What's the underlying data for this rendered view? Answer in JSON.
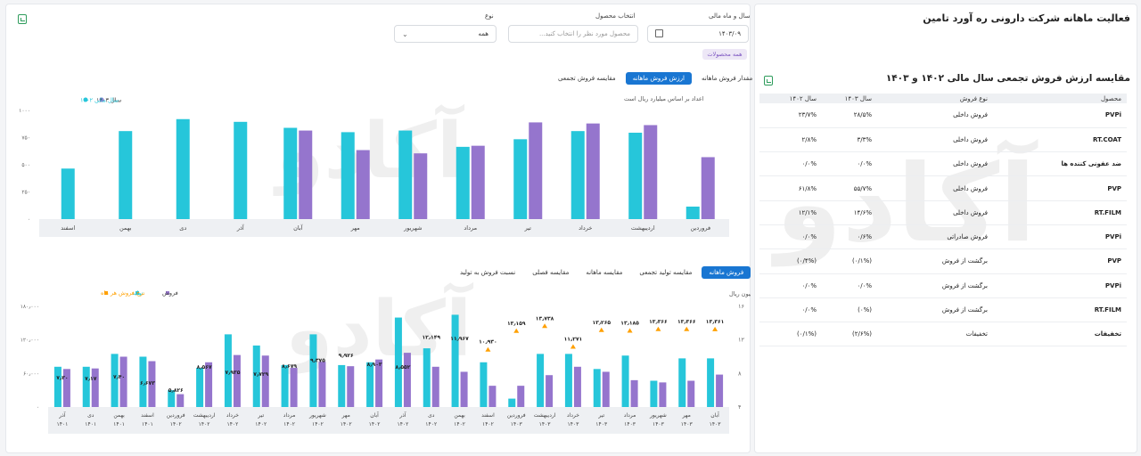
{
  "page_title": "فعالیت ماهانه شرکت دارونی ره آورد تامین",
  "filters": {
    "period_label": "سال و ماه مالی",
    "period_value": "۱۴۰۳/۰۹",
    "product_label": "انتخاب محصول",
    "product_placeholder": "محصول مورد نظر را انتخاب کنید...",
    "type_label": "نوع",
    "type_value": "همه",
    "all_products_chip": "همه محصولات"
  },
  "top_chart": {
    "tabs": [
      "مقدار فروش ماهانه",
      "ارزش فروش ماهانه",
      "مقایسه فروش تجمعی"
    ],
    "active_tab": 1,
    "note": "اعداد بر اساس میلیارد ریال است",
    "legend": [
      {
        "label": "سال ۱۴۰۳",
        "color": "#9575cd"
      },
      {
        "label": "سال مالی ۱۴۰۲",
        "color": "#26c6da"
      }
    ],
    "watermark": "آکادو"
  },
  "bottom_chart": {
    "tabs": [
      "فروش ماهانه",
      "مقایسه تولید تجمعی",
      "مقایسه ماهانه",
      "مقایسه فصلی",
      "نسبت فروش به تولید"
    ],
    "active_tab": 0,
    "legend": [
      {
        "label": "فروش",
        "color": "#9575cd"
      },
      {
        "label": "تولید",
        "color": "#26c6da"
      },
      {
        "label": "نرخ فروش هر ماه",
        "color": "#ffa000"
      }
    ],
    "right_axis_label": "میلیون ریال"
  },
  "comparison_table": {
    "title": "مقایسه ارزش فروش تجمعی سال مالی ۱۴۰۲ و ۱۴۰۳",
    "columns": [
      "محصول",
      "نوع فروش",
      "سال ۱۴۰۳",
      "سال ۱۴۰۲"
    ],
    "rows": [
      [
        "PVPi",
        "فروش داخلی",
        "۲۸/۵%",
        "۲۳/۷%"
      ],
      [
        "RT.COAT",
        "فروش داخلی",
        "۳/۳%",
        "۲/۸%"
      ],
      [
        "ضد عفونی کننده ها",
        "فروش داخلی",
        "۰/۰%",
        "۰/۰%"
      ],
      [
        "PVP",
        "فروش داخلی",
        "۵۵/۷%",
        "۶۱/۸%"
      ],
      [
        "RT.FILM",
        "فروش داخلی",
        "۱۴/۶%",
        "۱۲/۱%"
      ],
      [
        "PVPi",
        "فروش صادراتی",
        "۰/۶%",
        "۰/۰%"
      ],
      [
        "PVP",
        "برگشت از فروش",
        "(۰/۱%)",
        "(۰/۴%)"
      ],
      [
        "PVPi",
        "برگشت از فروش",
        "۰/۰%",
        "۰/۰%"
      ],
      [
        "RT.FILM",
        "برگشت از فروش",
        "(۰%)",
        "۰/۰%"
      ],
      [
        "تخفیفات",
        "تخفیفات",
        "(۲/۶%)",
        "(۰/۱%)"
      ]
    ]
  },
  "chart_data": [
    {
      "type": "bar",
      "categories": [
        "فروردین",
        "اردیبهشت",
        "خرداد",
        "تیر",
        "مرداد",
        "شهریور",
        "مهر",
        "آبان",
        "آذر",
        "دی",
        "بهمن",
        "اسفند"
      ],
      "series": [
        {
          "name": "سال مالی ۱۴۰۲",
          "values": [
            115,
            795,
            810,
            735,
            665,
            815,
            800,
            840,
            895,
            920,
            810,
            465
          ]
        },
        {
          "name": "سال ۱۴۰۳",
          "values": [
            570,
            865,
            880,
            890,
            675,
            605,
            635,
            815,
            null,
            null,
            null,
            null
          ]
        }
      ],
      "yticks": [
        "۱۰۰۰",
        "۷۵۰",
        "۵۰۰",
        "۲۵۰",
        "۰"
      ],
      "ylim": [
        0,
        1000
      ]
    },
    {
      "type": "bar",
      "categories": [
        "آذر ۱۴۰۱",
        "دی ۱۴۰۱",
        "بهمن ۱۴۰۱",
        "اسفند ۱۴۰۱",
        "فروردین ۱۴۰۲",
        "اردیبهشت ۱۴۰۲",
        "خرداد ۱۴۰۲",
        "تیر ۱۴۰۲",
        "مرداد ۱۴۰۲",
        "شهریور ۱۴۰۲",
        "مهر ۱۴۰۲",
        "آبان ۱۴۰۲",
        "آذر ۱۴۰۲",
        "دی ۱۴۰۲",
        "بهمن ۱۴۰۲",
        "اسفند ۱۴۰۲",
        "فروردین ۱۴۰۳",
        "اردیبهشت ۱۴۰۳",
        "خرداد ۱۴۰۳",
        "تیر ۱۴۰۳",
        "مرداد ۱۴۰۳",
        "شهریور ۱۴۰۳",
        "مهر ۱۴۰۳",
        "آبان ۱۴۰۳"
      ],
      "series": [
        {
          "name": "تولید",
          "values": [
            72000,
            72000,
            95000,
            90000,
            30000,
            70000,
            130000,
            110000,
            75000,
            130000,
            75000,
            80000,
            160000,
            105000,
            165000,
            80000,
            15000,
            95000,
            95000,
            68000,
            92000,
            47000,
            87000,
            87000
          ]
        },
        {
          "name": "فروش",
          "values": [
            68000,
            69000,
            90000,
            82000,
            23000,
            80000,
            93000,
            92000,
            70000,
            81000,
            73000,
            85000,
            97000,
            72000,
            63000,
            38000,
            38000,
            57000,
            72000,
            63000,
            48000,
            44000,
            47000,
            58000
          ]
        },
        {
          "name": "نرخ فروش هر ماه",
          "values": [
            7.3,
            7.17,
            7.4,
            6.673,
            5.826,
            8.567,
            7.935,
            7.729,
            8.679,
            9.375,
            9.926,
            8.903,
            8.552,
            12.149,
            11.967,
            10.93,
            13.159,
            13.738,
            11.271,
            13.265,
            13.185,
            13.366,
            13.366,
            13.361
          ]
        }
      ],
      "bar_labels": [
        "۷٫۳۰",
        "۷٫۱۷",
        "۷٫۴۰",
        "۶٫۶۷۳",
        "۵٫۸۲۶",
        "۸٫۵۶۷",
        "۷٫۹۳۵",
        "۷٫۷۲۹",
        "۸٫۶۷۹",
        "۹٫۳۷۵",
        "۹٫۹۲۶",
        "۸٫۹۰۳",
        "۸٫۵۵۲",
        "۱۲٫۱۴۹",
        "۱۱٫۹۶۷",
        "۱۰٫۹۳۰",
        "۱۳٫۱۵۹",
        "۱۳٫۷۳۸",
        "۱۱٫۲۷۱",
        "۱۳٫۲۶۵",
        "۱۳٫۱۸۵",
        "۱۳٫۳۶۶",
        "۱۳٫۳۶۶",
        "۱۳٫۳۶۱"
      ],
      "y_left_ticks": [
        "۱۸۰٫۰۰۰",
        "۱۲۰٫۰۰۰",
        "۶۰٫۰۰۰",
        "۰"
      ],
      "y_right_ticks": [
        "۱۶",
        "۱۲",
        "۸",
        "۴"
      ],
      "ylim": [
        0,
        180000
      ],
      "y2lim": [
        4,
        16
      ]
    }
  ]
}
